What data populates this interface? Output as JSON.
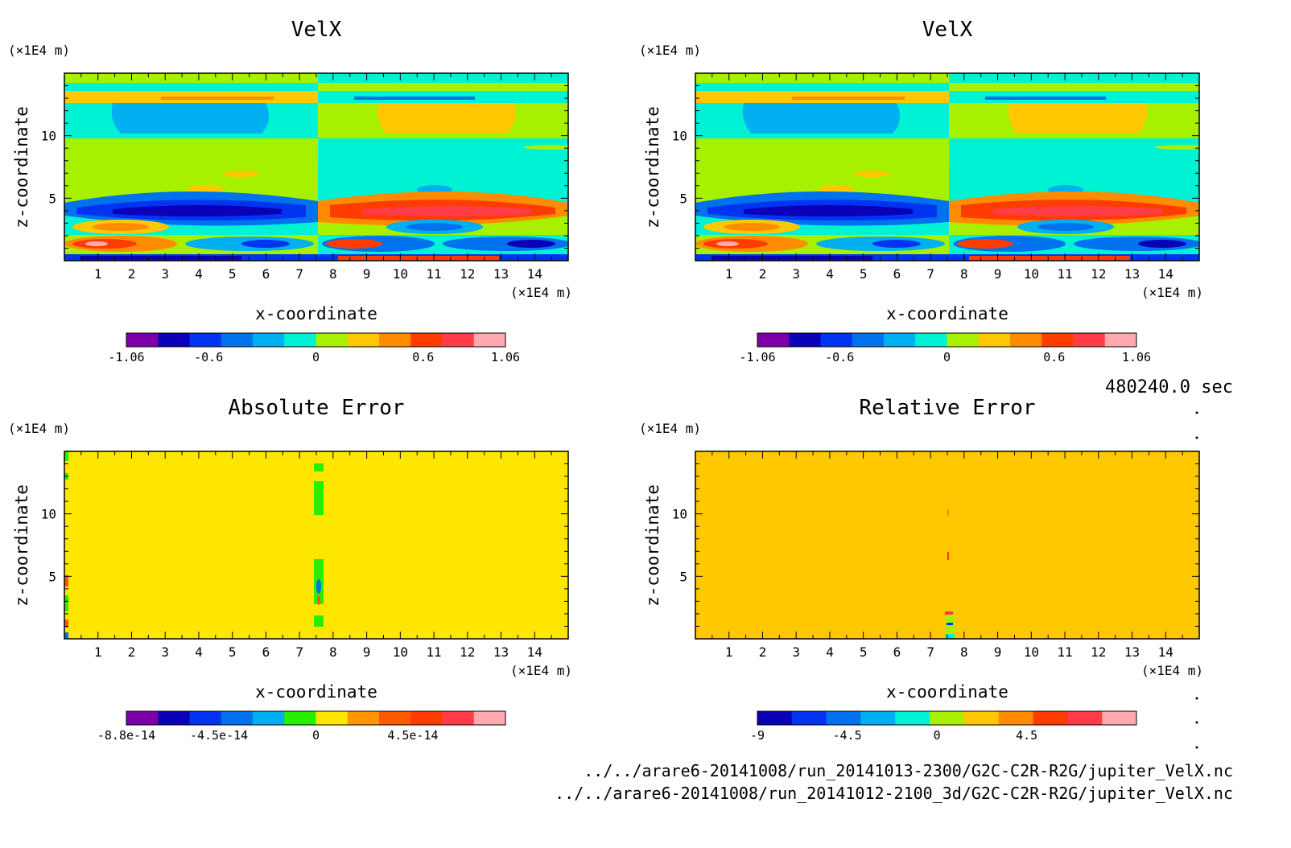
{
  "time_label": "480240.0 sec",
  "file_paths": [
    "../../arare6-20141008/run_20141013-2300/G2C-C2R-R2G/jupiter_VelX.nc",
    "../../arare6-20141008/run_20141012-2100_3d/G2C-C2R-R2G/jupiter_VelX.nc"
  ],
  "colors": {
    "velx_levels": [
      "#7b00a8",
      "#0a00b8",
      "#0034f0",
      "#0072ee",
      "#00b0f0",
      "#00f2d4",
      "#a6f000",
      "#ffc800",
      "#ff8c00",
      "#ff3c00",
      "#ff3c48",
      "#ffaab0"
    ],
    "abs_levels": [
      "#7b00a8",
      "#0a00b8",
      "#0034f0",
      "#0072ee",
      "#00b0f0",
      "#28ee00",
      "#ffe600",
      "#ff9600",
      "#ff5a00",
      "#ff3c00",
      "#ff3c48",
      "#ffaab0"
    ],
    "rel_levels": [
      "#0a00b8",
      "#0034f0",
      "#0072ee",
      "#00b0f0",
      "#00f2d4",
      "#a6f000",
      "#ffc800",
      "#ff8c00",
      "#ff3c00",
      "#ff3c48",
      "#ffaab0"
    ]
  },
  "chart_data": [
    {
      "id": "velx-1",
      "type": "heatmap",
      "title": "VelX",
      "xlabel": "x-coordinate",
      "ylabel": "z-coordinate",
      "x_unit": "(×1E4 m)",
      "y_unit": "(×1E4 m)",
      "xlim": [
        0,
        15
      ],
      "ylim": [
        0,
        15
      ],
      "x_ticks": [
        1,
        2,
        3,
        4,
        5,
        6,
        7,
        8,
        9,
        10,
        11,
        12,
        13,
        14
      ],
      "y_ticks": [
        5,
        10
      ],
      "colorbar": {
        "min": -1.06,
        "max": 1.06,
        "levels": 12,
        "labels": [
          "-1.06",
          "-0.6",
          "0",
          "0.6",
          "1.06"
        ],
        "label_values": [
          -1.06,
          -0.6,
          0,
          0.6,
          1.06
        ]
      }
    },
    {
      "id": "velx-2",
      "type": "heatmap",
      "title": "VelX",
      "xlabel": "x-coordinate",
      "ylabel": "z-coordinate",
      "x_unit": "(×1E4 m)",
      "y_unit": "(×1E4 m)",
      "xlim": [
        0,
        15
      ],
      "ylim": [
        0,
        15
      ],
      "x_ticks": [
        1,
        2,
        3,
        4,
        5,
        6,
        7,
        8,
        9,
        10,
        11,
        12,
        13,
        14
      ],
      "y_ticks": [
        5,
        10
      ],
      "colorbar": {
        "min": -1.06,
        "max": 1.06,
        "levels": 12,
        "labels": [
          "-1.06",
          "-0.6",
          "0",
          "0.6",
          "1.06"
        ],
        "label_values": [
          -1.06,
          -0.6,
          0,
          0.6,
          1.06
        ]
      }
    },
    {
      "id": "abs-error",
      "type": "heatmap",
      "title": "Absolute Error",
      "xlabel": "x-coordinate",
      "ylabel": "z-coordinate",
      "x_unit": "(×1E4 m)",
      "y_unit": "(×1E4 m)",
      "xlim": [
        0,
        15
      ],
      "ylim": [
        0,
        15
      ],
      "x_ticks": [
        1,
        2,
        3,
        4,
        5,
        6,
        7,
        8,
        9,
        10,
        11,
        12,
        13,
        14
      ],
      "y_ticks": [
        5,
        10
      ],
      "colorbar": {
        "min": -8.8e-14,
        "max": 8.8e-14,
        "levels": 12,
        "labels": [
          "-8.8e-14",
          "-4.5e-14",
          "0",
          "4.5e-14"
        ],
        "label_values": [
          -8.8e-14,
          -4.5e-14,
          0,
          4.5e-14
        ]
      }
    },
    {
      "id": "rel-error",
      "type": "heatmap",
      "title": "Relative Error",
      "xlabel": "x-coordinate",
      "ylabel": "z-coordinate",
      "x_unit": "(×1E4 m)",
      "y_unit": "(×1E4 m)",
      "xlim": [
        0,
        15
      ],
      "ylim": [
        0,
        15
      ],
      "x_ticks": [
        1,
        2,
        3,
        4,
        5,
        6,
        7,
        8,
        9,
        10,
        11,
        12,
        13,
        14
      ],
      "y_ticks": [
        5,
        10
      ],
      "colorbar": {
        "min": -9,
        "max": 10,
        "levels": 11,
        "labels": [
          "-9",
          "-4.5",
          "0",
          "4.5"
        ],
        "label_values": [
          -9,
          -4.5,
          0,
          4.5
        ]
      }
    }
  ]
}
